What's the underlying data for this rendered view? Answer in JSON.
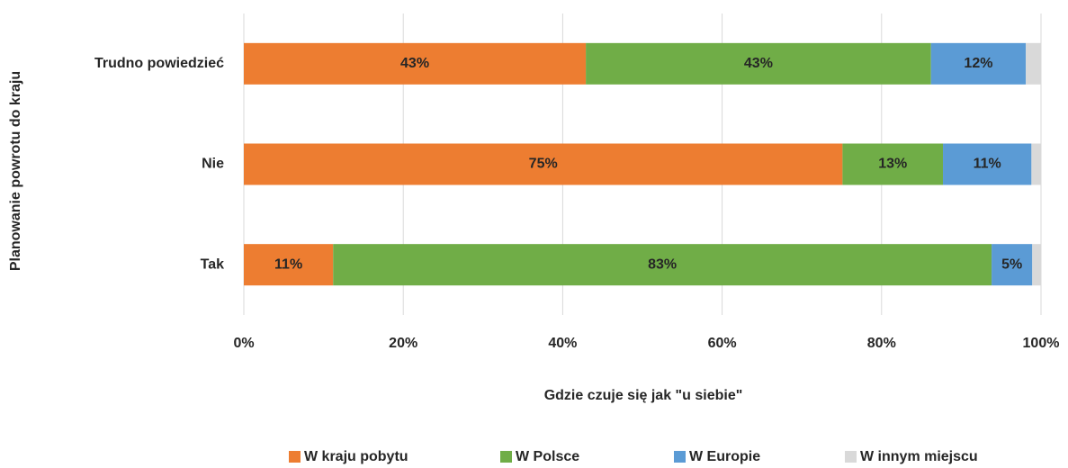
{
  "chart_data": {
    "type": "stacked_bar_horizontal",
    "categories": [
      "Trudno powiedzieć",
      "Nie",
      "Tak"
    ],
    "series": [
      {
        "name": "W kraju pobytu",
        "color": "#ed7d31",
        "values": [
          42.9,
          75.1,
          11.2
        ],
        "value_labels": [
          "43%",
          "75%",
          "11%"
        ]
      },
      {
        "name": "W Polsce",
        "color": "#70ad47",
        "values": [
          43.3,
          12.6,
          82.6
        ],
        "value_labels": [
          "43%",
          "13%",
          "83%"
        ]
      },
      {
        "name": "W Europie",
        "color": "#5b9bd5",
        "values": [
          11.9,
          11.1,
          5.1
        ],
        "value_labels": [
          "12%",
          "11%",
          "5%"
        ]
      },
      {
        "name": "W innym miejscu",
        "color": "#d9d9d9",
        "values": [
          1.9,
          1.2,
          1.1
        ]
      }
    ],
    "xlim": [
      0,
      100
    ],
    "xticks": [
      {
        "value": 0,
        "label": "0%"
      },
      {
        "value": 20,
        "label": "20%"
      },
      {
        "value": 40,
        "label": "40%"
      },
      {
        "value": 60,
        "label": "60%"
      },
      {
        "value": 80,
        "label": "80%"
      },
      {
        "value": 100,
        "label": "100%"
      }
    ],
    "xlabel": "Gdzie czuje się jak \"u siebie\"",
    "ylabel": "Planowanie powrotu do kraju",
    "grid": true,
    "legend": "bottom"
  }
}
